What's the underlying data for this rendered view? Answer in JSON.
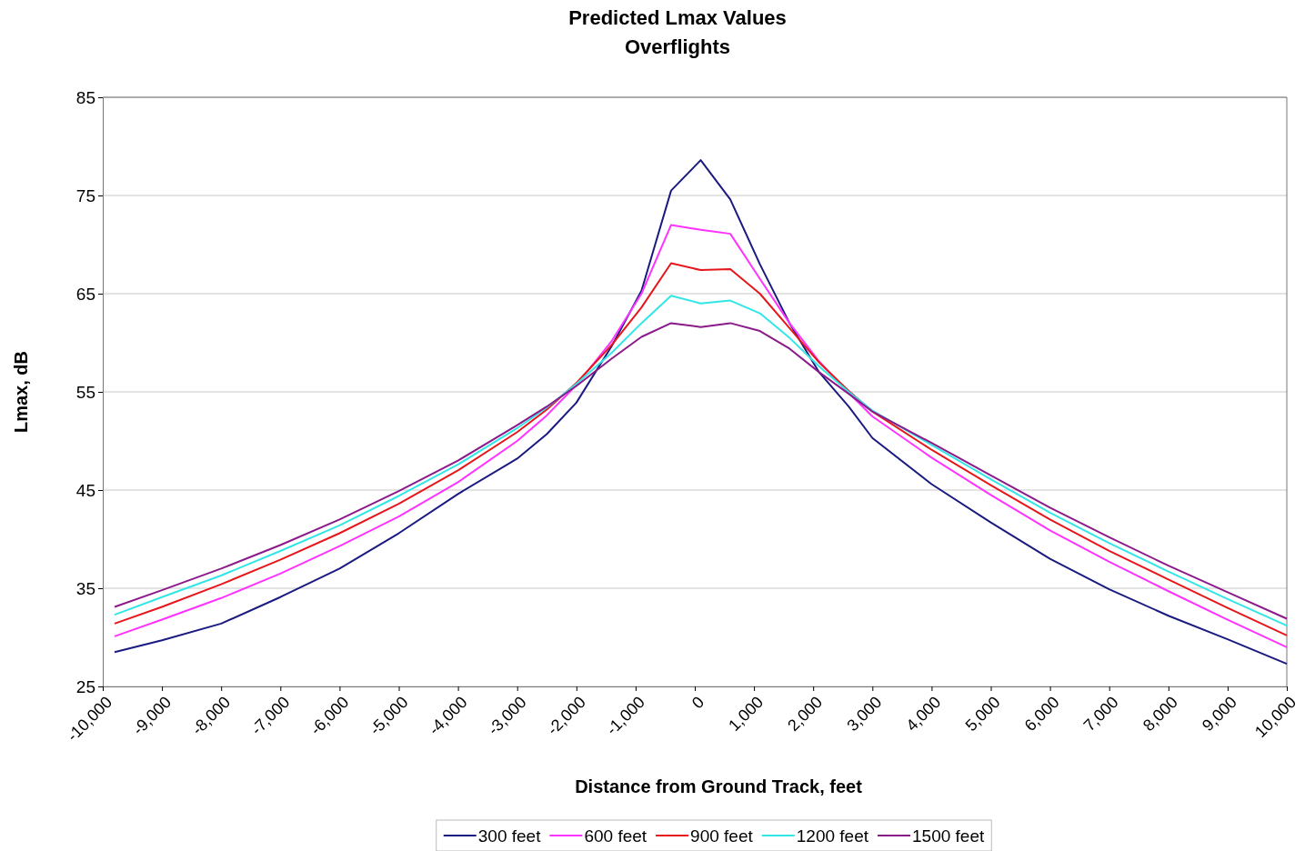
{
  "chart_data": {
    "type": "line",
    "title": "Predicted Lmax Values",
    "subtitle": "Overflights",
    "xlabel": "Distance from Ground Track, feet",
    "ylabel": "Lmax, dB",
    "x": [
      -9800,
      -9000,
      -8000,
      -7000,
      -6000,
      -5000,
      -4000,
      -3000,
      -2500,
      -2000,
      -1400,
      -900,
      -400,
      100,
      600,
      1100,
      1600,
      2100,
      2600,
      3000,
      4000,
      5000,
      6000,
      7000,
      8000,
      9000,
      10000
    ],
    "series": [
      {
        "name": "300 feet",
        "color": "#1a1a80",
        "values": [
          28.5,
          29.7,
          31.4,
          34.1,
          37.0,
          40.6,
          44.6,
          48.2,
          50.7,
          53.9,
          59.7,
          65.3,
          75.5,
          78.6,
          74.6,
          68.0,
          62.0,
          57.0,
          53.5,
          50.3,
          45.6,
          41.7,
          38.0,
          34.9,
          32.2,
          29.8,
          27.3
        ]
      },
      {
        "name": "600 feet",
        "color": "#ff33ff",
        "values": [
          30.1,
          31.8,
          34.0,
          36.5,
          39.3,
          42.3,
          45.8,
          50.0,
          52.6,
          55.7,
          60.2,
          65.0,
          72.0,
          71.5,
          71.1,
          66.5,
          62.0,
          58.1,
          54.9,
          52.5,
          48.3,
          44.5,
          40.9,
          37.7,
          34.7,
          31.8,
          29.0
        ]
      },
      {
        "name": "900 feet",
        "color": "#e6161a",
        "values": [
          31.4,
          33.1,
          35.4,
          37.9,
          40.6,
          43.6,
          47.0,
          50.9,
          53.2,
          55.9,
          59.8,
          63.6,
          68.1,
          67.4,
          67.5,
          65.0,
          61.5,
          58.0,
          55.1,
          53.0,
          49.1,
          45.5,
          42.0,
          38.8,
          35.9,
          33.0,
          30.2
        ]
      },
      {
        "name": "1200 feet",
        "color": "#33e6e6",
        "values": [
          32.3,
          34.1,
          36.3,
          38.8,
          41.4,
          44.4,
          47.6,
          51.3,
          53.4,
          55.8,
          59.0,
          62.0,
          64.8,
          64.0,
          64.3,
          63.0,
          60.5,
          57.6,
          55.0,
          53.1,
          49.6,
          46.1,
          42.7,
          39.6,
          36.7,
          33.9,
          31.2
        ]
      },
      {
        "name": "1500 feet",
        "color": "#8b1a8b",
        "values": [
          33.1,
          34.8,
          37.0,
          39.4,
          42.0,
          44.9,
          48.0,
          51.6,
          53.5,
          55.6,
          58.4,
          60.6,
          62.0,
          61.6,
          62.0,
          61.2,
          59.4,
          57.0,
          54.8,
          53.0,
          49.8,
          46.5,
          43.2,
          40.2,
          37.3,
          34.6,
          31.9
        ]
      }
    ],
    "xlim": [
      -10000,
      10000
    ],
    "xticks": [
      {
        "value": -10000,
        "label": "-10,000"
      },
      {
        "value": -9000,
        "label": "-9,000"
      },
      {
        "value": -8000,
        "label": "-8,000"
      },
      {
        "value": -7000,
        "label": "-7,000"
      },
      {
        "value": -6000,
        "label": "-6,000"
      },
      {
        "value": -5000,
        "label": "-5,000"
      },
      {
        "value": -4000,
        "label": "-4,000"
      },
      {
        "value": -3000,
        "label": "-3,000"
      },
      {
        "value": -2000,
        "label": "-2,000"
      },
      {
        "value": -1000,
        "label": "-1,000"
      },
      0,
      {
        "value": 1000,
        "label": "1,000"
      },
      {
        "value": 2000,
        "label": "2,000"
      },
      {
        "value": 3000,
        "label": "3,000"
      },
      {
        "value": 4000,
        "label": "4,000"
      },
      {
        "value": 5000,
        "label": "5,000"
      },
      {
        "value": 6000,
        "label": "6,000"
      },
      {
        "value": 7000,
        "label": "7,000"
      },
      {
        "value": 8000,
        "label": "8,000"
      },
      {
        "value": 9000,
        "label": "9,000"
      },
      {
        "value": 10000,
        "label": "10,000"
      }
    ],
    "ylim": [
      25,
      85
    ],
    "yticks": [
      25,
      35,
      45,
      55,
      65,
      75,
      85
    ],
    "grid": "y",
    "legend": "bottom",
    "marker": "none",
    "line_style": "solid"
  }
}
